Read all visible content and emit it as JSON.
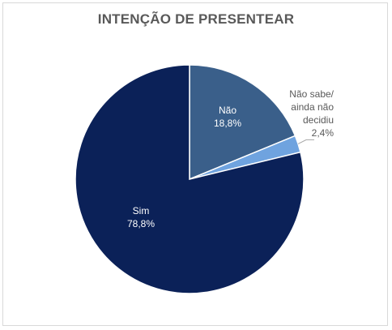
{
  "chart_data": {
    "type": "pie",
    "title": "INTENÇÃO DE PRESENTEAR",
    "categories": [
      "Não",
      "Não sabe/ ainda não decidiu",
      "Sim"
    ],
    "values": [
      18.8,
      2.4,
      78.8
    ],
    "value_labels": [
      "18,8%",
      "2,4%",
      "78,8%"
    ],
    "label_lines": [
      [
        "Não"
      ],
      [
        "Não sabe/",
        "ainda não",
        "decidiu"
      ],
      [
        "Sim"
      ]
    ],
    "colors": [
      "#3a5f8a",
      "#6fa3df",
      "#0b2158"
    ],
    "label_colors": [
      "#ffffff",
      "#595959",
      "#ffffff"
    ],
    "legend": "none"
  }
}
